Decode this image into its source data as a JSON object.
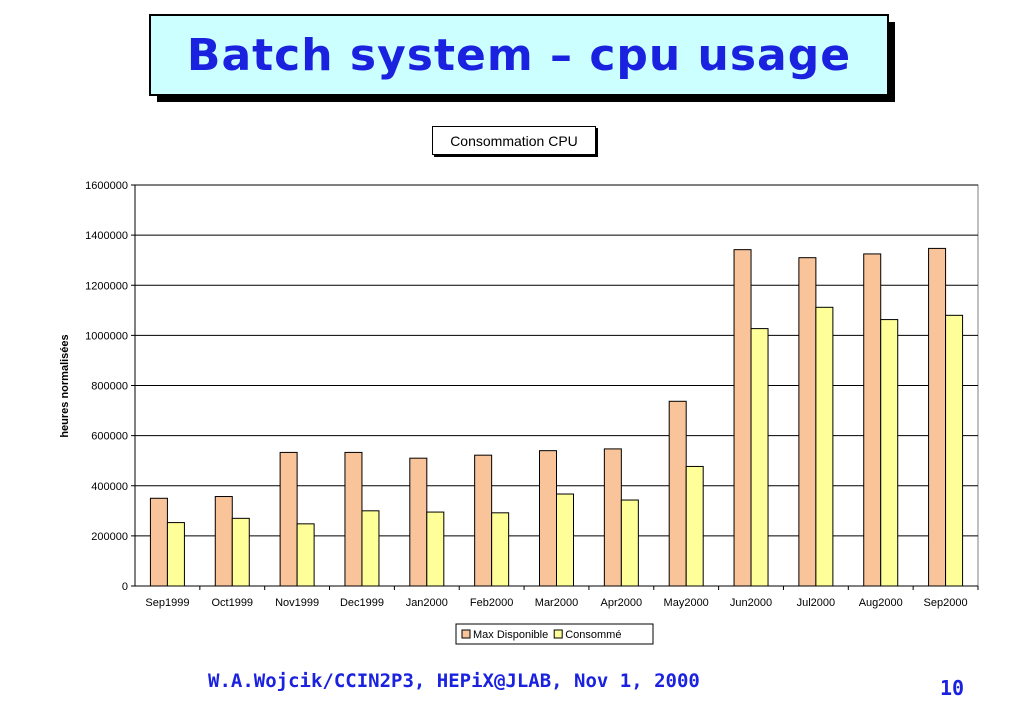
{
  "slide": {
    "title": "Batch system – cpu usage",
    "footer": "W.A.Wojcik/CCIN2P3, HEPiX@JLAB, Nov 1, 2000",
    "page_number": "10"
  },
  "colors": {
    "title_text": "#1a22e0",
    "title_bg": "#ccffff",
    "series_max": "#f9c49a",
    "series_consomme": "#ffff99"
  },
  "chart_data": {
    "type": "bar",
    "title": "Consommation CPU",
    "xlabel": "",
    "ylabel": "heures normalisées",
    "ylim": [
      0,
      1600000
    ],
    "yticks": [
      "0",
      "200000",
      "400000",
      "600000",
      "800000",
      "1000000",
      "1200000",
      "1400000",
      "1600000"
    ],
    "grid": true,
    "legend_position": "bottom",
    "categories": [
      "Sep1999",
      "Oct1999",
      "Nov1999",
      "Dec1999",
      "Jan2000",
      "Feb2000",
      "Mar2000",
      "Apr2000",
      "May2000",
      "Jun2000",
      "Jul2000",
      "Aug2000",
      "Sep2000"
    ],
    "series": [
      {
        "name": "Max Disponible",
        "values": [
          350000,
          357000,
          533000,
          533000,
          510000,
          522000,
          540000,
          547000,
          737000,
          1342000,
          1310000,
          1325000,
          1347000
        ]
      },
      {
        "name": "Consommé",
        "values": [
          253000,
          270000,
          248000,
          300000,
          295000,
          292000,
          367000,
          343000,
          477000,
          1027000,
          1112000,
          1063000,
          1080000
        ]
      }
    ]
  }
}
